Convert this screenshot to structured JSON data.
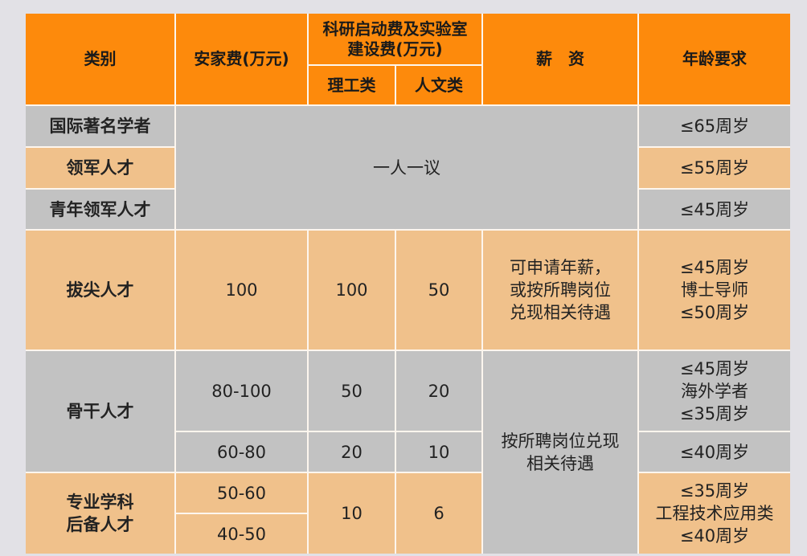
{
  "colors": {
    "header": "#fd8a0c",
    "gray_row": "#c2c2c2",
    "orange_row": "#f0c18b"
  },
  "header": {
    "category": "类别",
    "settling_fee": "安家费(万元)",
    "research_fee": "科研启动费及实验室\n建设费(万元)",
    "science": "理工类",
    "humanities": "人文类",
    "salary": "薪　资",
    "age": "年龄要求"
  },
  "rows": {
    "intl": {
      "category": "国际著名学者",
      "age": "≤65周岁"
    },
    "leading": {
      "category": "领军人才",
      "age": "≤55周岁"
    },
    "young_leading": {
      "category": "青年领军人才",
      "age": "≤45周岁"
    },
    "negotiable": "一人一议",
    "top": {
      "category": "拔尖人才",
      "settling": "100",
      "science": "100",
      "humanities": "50",
      "salary": "可申请年薪，\n或按所聘岗位\n兑现相关待遇",
      "age": "≤45周岁\n博士导师\n≤50周岁"
    },
    "backbone": {
      "category": "骨干人才",
      "a": {
        "settling": "80-100",
        "science": "50",
        "humanities": "20",
        "age": "≤45周岁\n海外学者\n≤35周岁"
      },
      "b": {
        "settling": "60-80",
        "science": "20",
        "humanities": "10",
        "age": "≤40周岁"
      },
      "salary": "按所聘岗位兑现\n相关待遇"
    },
    "reserve": {
      "category": "专业学科\n后备人才",
      "settling_a": "50-60",
      "settling_b": "40-50",
      "science": "10",
      "humanities": "6",
      "age": "≤35周岁\n工程技术应用类\n≤40周岁"
    }
  }
}
